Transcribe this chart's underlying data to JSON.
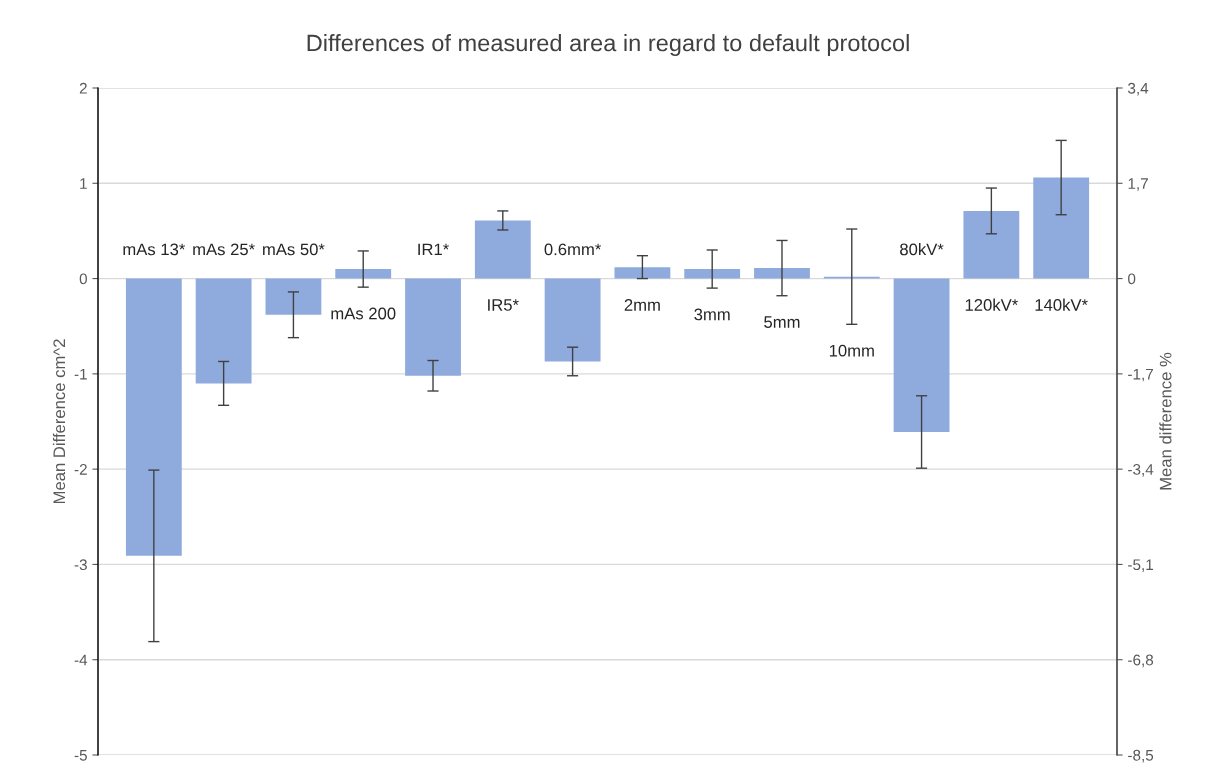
{
  "chart_data": {
    "type": "bar",
    "title": "Differences of measured area in regard to default protocol",
    "ylabel": "Mean Difference cm^2",
    "y2label": "Mean difference %",
    "categories": [
      "mAs 13*",
      "mAs 25*",
      "mAs 50*",
      "mAs 200",
      "IR1*",
      "IR5*",
      "0.6mm*",
      "2mm",
      "3mm",
      "5mm",
      "10mm",
      "80kV*",
      "120kV*",
      "140kV*"
    ],
    "values": [
      -2.91,
      -1.1,
      -0.38,
      0.1,
      -1.02,
      0.61,
      -0.87,
      0.12,
      0.1,
      0.11,
      0.02,
      -1.61,
      0.71,
      1.06
    ],
    "errors": [
      0.9,
      0.23,
      0.24,
      0.19,
      0.16,
      0.1,
      0.15,
      0.12,
      0.2,
      0.29,
      0.5,
      0.38,
      0.24,
      0.39
    ],
    "color": "#8faadc",
    "ylim": [
      -5,
      2
    ],
    "yticks": [
      -5,
      -4,
      -3,
      -2,
      -1,
      0,
      1,
      2
    ],
    "y2lim": [
      -8.5,
      3.4
    ],
    "y2ticks": [
      {
        "value": -8.5,
        "label": "-8,5"
      },
      {
        "value": -6.8,
        "label": "-6,8"
      },
      {
        "value": -5.1,
        "label": "-5,1"
      },
      {
        "value": -3.4,
        "label": "-3,4"
      },
      {
        "value": -1.7,
        "label": "-1,7"
      },
      {
        "value": 0,
        "label": "0"
      },
      {
        "value": 1.7,
        "label": "1,7"
      },
      {
        "value": 3.4,
        "label": "3,4"
      }
    ],
    "grid": "y"
  }
}
